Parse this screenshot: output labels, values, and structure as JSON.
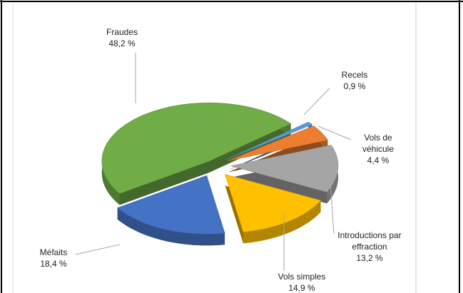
{
  "chart_data": {
    "type": "pie",
    "categories": [
      "Recels",
      "Vols de véhicule",
      "Introductions par effraction",
      "Vols simples",
      "Méfaits",
      "Fraudes"
    ],
    "values": [
      0.9,
      4.4,
      13.2,
      14.9,
      18.4,
      48.2
    ],
    "value_labels": [
      "0,9 %",
      "4,4 %",
      "13,2 %",
      "14,9 %",
      "18,4 %",
      "48,2 %"
    ],
    "colors": [
      "#5b9bd5",
      "#ed7d31",
      "#a5a5a5",
      "#ffc000",
      "#4472c4",
      "#70ad47"
    ]
  }
}
